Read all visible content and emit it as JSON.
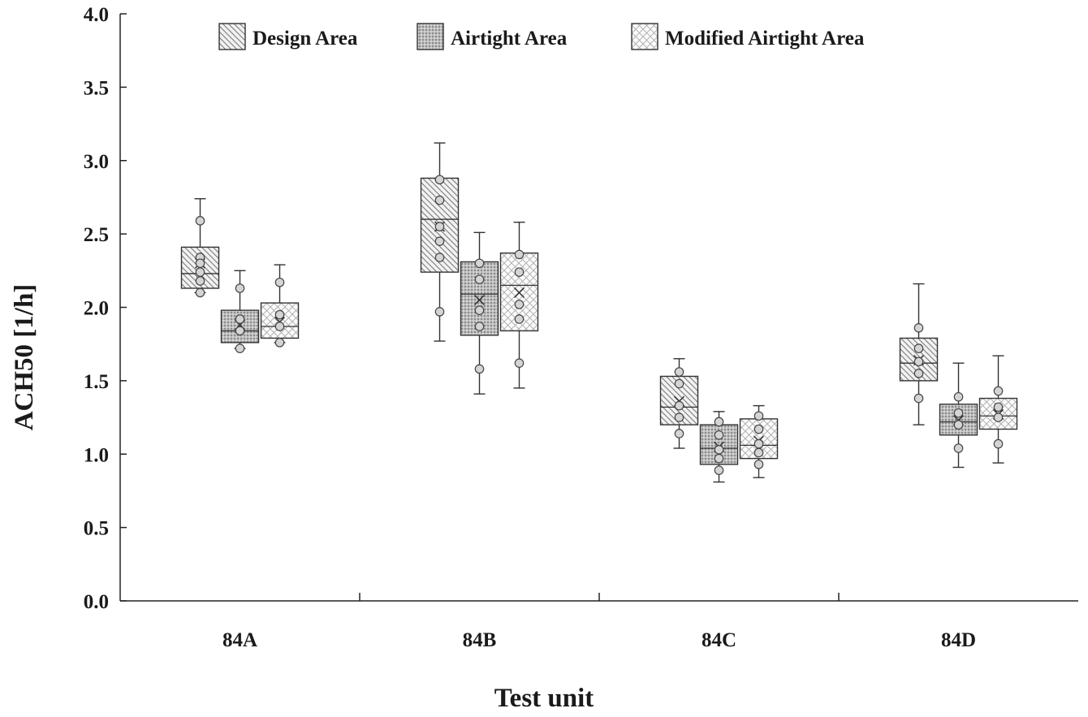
{
  "chart_data": {
    "type": "box",
    "xlabel": "Test unit",
    "ylabel": "ACH50 [1/h]",
    "ylim": [
      0,
      4
    ],
    "yticks": [
      "0.0",
      "0.5",
      "1.0",
      "1.5",
      "2.0",
      "2.5",
      "3.0",
      "3.5",
      "4.0"
    ],
    "categories": [
      "84A",
      "84B",
      "84C",
      "84D"
    ],
    "legend_position": "top",
    "grid": false,
    "series": [
      {
        "name": "Design Area",
        "pattern": "diagonal-hatch",
        "boxes": [
          {
            "min": 2.1,
            "q1": 2.13,
            "median": 2.23,
            "mean": 2.3,
            "q3": 2.41,
            "max": 2.74,
            "points": [
              2.59,
              2.34,
              2.3,
              2.24,
              2.18,
              2.1
            ]
          },
          {
            "min": 1.77,
            "q1": 2.24,
            "median": 2.6,
            "mean": 2.55,
            "q3": 2.88,
            "max": 3.12,
            "points": [
              2.87,
              2.73,
              2.55,
              2.45,
              2.34,
              1.97
            ]
          },
          {
            "min": 1.04,
            "q1": 1.2,
            "median": 1.32,
            "mean": 1.36,
            "q3": 1.53,
            "max": 1.65,
            "points": [
              1.56,
              1.48,
              1.33,
              1.25,
              1.14
            ]
          },
          {
            "min": 1.2,
            "q1": 1.5,
            "median": 1.62,
            "mean": 1.64,
            "q3": 1.79,
            "max": 2.16,
            "points": [
              1.86,
              1.72,
              1.63,
              1.55,
              1.38
            ]
          }
        ]
      },
      {
        "name": "Airtight Area",
        "pattern": "dots",
        "boxes": [
          {
            "min": 1.72,
            "q1": 1.76,
            "median": 1.84,
            "mean": 1.88,
            "q3": 1.98,
            "max": 2.25,
            "points": [
              2.13,
              1.92,
              1.84,
              1.72
            ]
          },
          {
            "min": 1.41,
            "q1": 1.81,
            "median": 2.09,
            "mean": 2.05,
            "q3": 2.31,
            "max": 2.51,
            "points": [
              2.3,
              2.19,
              1.98,
              1.87,
              1.58
            ]
          },
          {
            "min": 0.81,
            "q1": 0.93,
            "median": 1.04,
            "mean": 1.05,
            "q3": 1.2,
            "max": 1.29,
            "points": [
              1.22,
              1.13,
              1.03,
              0.97,
              0.89
            ]
          },
          {
            "min": 0.91,
            "q1": 1.13,
            "median": 1.22,
            "mean": 1.23,
            "q3": 1.34,
            "max": 1.62,
            "points": [
              1.39,
              1.28,
              1.2,
              1.04
            ]
          }
        ]
      },
      {
        "name": "Modified Airtight Area",
        "pattern": "cross-hatch",
        "boxes": [
          {
            "min": 1.76,
            "q1": 1.79,
            "median": 1.87,
            "mean": 1.9,
            "q3": 2.03,
            "max": 2.29,
            "points": [
              2.17,
              1.95,
              1.87,
              1.76
            ]
          },
          {
            "min": 1.45,
            "q1": 1.84,
            "median": 2.15,
            "mean": 2.1,
            "q3": 2.37,
            "max": 2.58,
            "points": [
              2.36,
              2.24,
              2.02,
              1.92,
              1.62
            ]
          },
          {
            "min": 0.84,
            "q1": 0.97,
            "median": 1.06,
            "mean": 1.09,
            "q3": 1.24,
            "max": 1.33,
            "points": [
              1.26,
              1.17,
              1.07,
              1.01,
              0.93
            ]
          },
          {
            "min": 0.94,
            "q1": 1.17,
            "median": 1.26,
            "mean": 1.27,
            "q3": 1.38,
            "max": 1.67,
            "points": [
              1.43,
              1.32,
              1.25,
              1.07
            ]
          }
        ]
      }
    ]
  }
}
